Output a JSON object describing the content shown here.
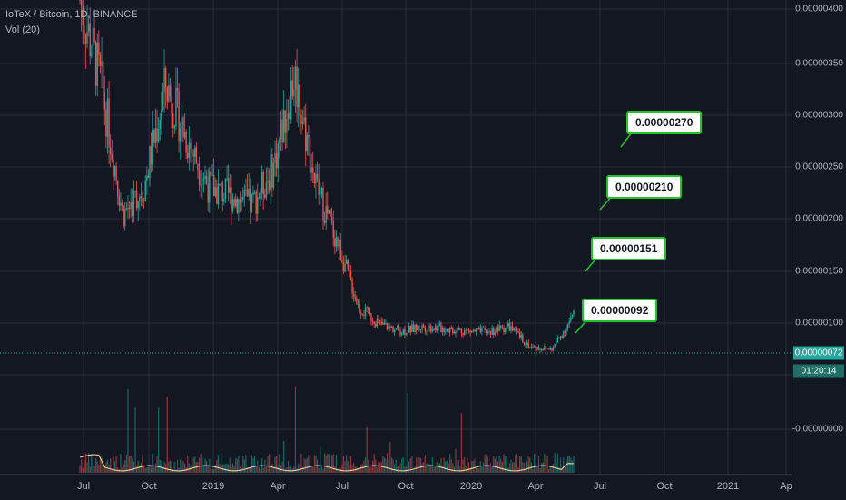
{
  "legend": {
    "symbol_line": "IoTeX / Bitcoin, 1D, BINANCE",
    "volume_label": "Vol (20)"
  },
  "price_axis": {
    "ticks": [
      "0.00000400",
      "0.00000350",
      "0.00000300",
      "0.00000250",
      "0.00000200",
      "0.00000150",
      "0.00000100",
      "0.00000050",
      "0.00000000",
      "-0.00000050"
    ],
    "labels": [
      "0.00000400",
      "0.00000350",
      "0.00000300",
      "0.00000250",
      "0.00000200",
      "0.00000150",
      "0.00000100",
      "",
      "",
      "-0.00000000"
    ]
  },
  "time_axis": {
    "labels": [
      "Jul",
      "Oct",
      "2019",
      "Apr",
      "Jul",
      "Oct",
      "2020",
      "Apr",
      "Jul",
      "Oct",
      "2021",
      "Ap"
    ]
  },
  "last_price": "0.00000072",
  "countdown": "01:20:14",
  "annotations": [
    "0.00000270",
    "0.00000210",
    "0.00000151",
    "0.00000092"
  ],
  "colors": {
    "background": "#131722",
    "grid": "#2a2e39",
    "up": "#26a69a",
    "down": "#ef5350",
    "callout_border": "#22c22a",
    "volume_ma": "#f7e0a3"
  },
  "chart_data": {
    "type": "candlestick",
    "series_x": [
      "2018-06",
      "2018-07",
      "2018-08",
      "2018-09",
      "2018-10",
      "2018-11",
      "2018-12",
      "2019-01",
      "2019-02",
      "2019-03",
      "2019-04",
      "2019-05",
      "2019-06",
      "2019-07",
      "2019-08",
      "2019-09",
      "2019-10",
      "2019-11",
      "2019-12",
      "2020-01",
      "2020-02",
      "2020-03",
      "2020-04",
      "2020-05"
    ],
    "close": [
      4.1e-06,
      3.2e-06,
      1.8e-06,
      2.1e-06,
      3.2e-06,
      2.6e-06,
      2.1e-06,
      2e-06,
      1.9e-06,
      2.3e-06,
      3.3e-06,
      2.1e-06,
      1.5e-06,
      8e-07,
      6.2e-07,
      5.5e-07,
      6e-07,
      5.8e-07,
      5.5e-07,
      5.4e-07,
      6e-07,
      3.8e-07,
      3.6e-07,
      7.2e-07
    ],
    "ylim": [
      -5e-07,
      4.2e-06
    ]
  }
}
